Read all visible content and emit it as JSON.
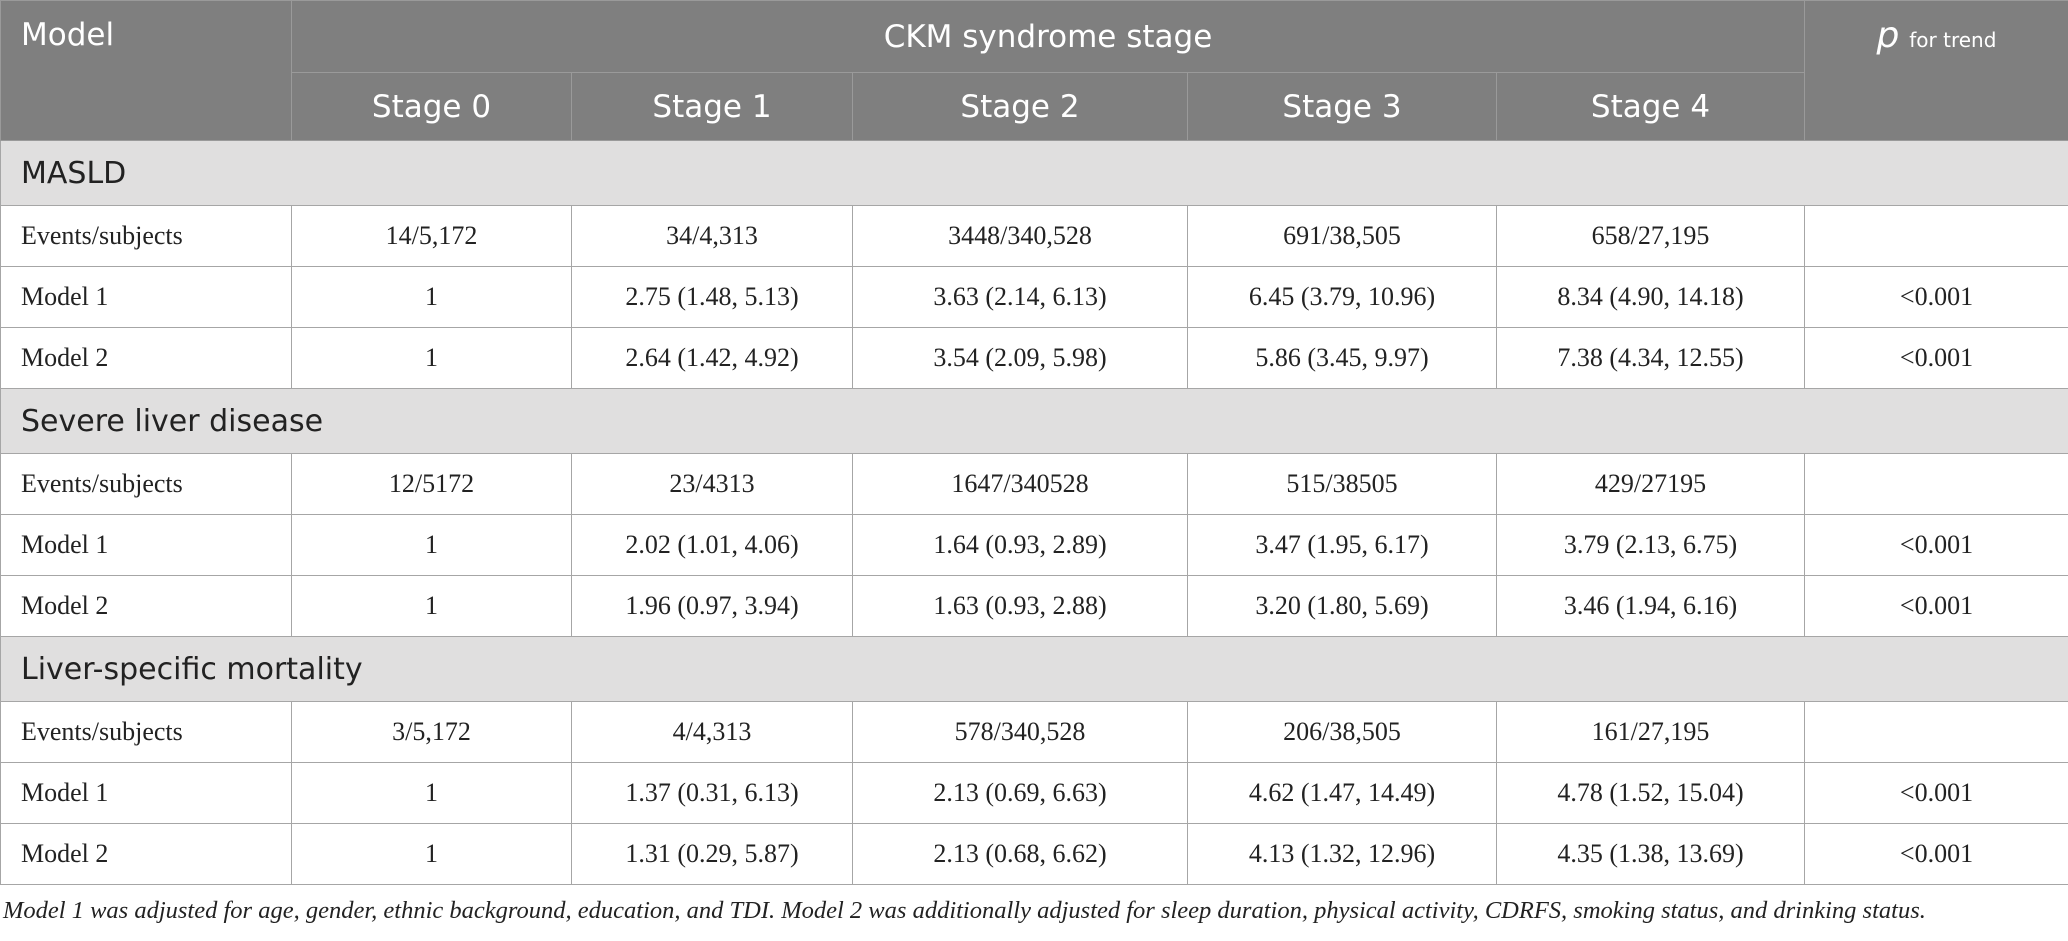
{
  "header": {
    "model": "Model",
    "group": "CKM syndrome stage",
    "p_symbol": "p",
    "p_suffix": "for trend",
    "stages": [
      "Stage 0",
      "Stage 1",
      "Stage 2",
      "Stage 3",
      "Stage 4"
    ]
  },
  "sections": [
    {
      "title": "MASLD",
      "rows": [
        [
          "Events/subjects",
          "14/5,172",
          "34/4,313",
          "3448/340,528",
          "691/38,505",
          "658/27,195",
          ""
        ],
        [
          "Model 1",
          "1",
          "2.75 (1.48, 5.13)",
          "3.63 (2.14, 6.13)",
          "6.45 (3.79, 10.96)",
          "8.34 (4.90, 14.18)",
          "<0.001"
        ],
        [
          "Model 2",
          "1",
          "2.64 (1.42, 4.92)",
          "3.54 (2.09, 5.98)",
          "5.86 (3.45, 9.97)",
          "7.38 (4.34, 12.55)",
          "<0.001"
        ]
      ]
    },
    {
      "title": "Severe liver disease",
      "rows": [
        [
          "Events/subjects",
          "12/5172",
          "23/4313",
          "1647/340528",
          "515/38505",
          "429/27195",
          ""
        ],
        [
          "Model 1",
          "1",
          "2.02 (1.01, 4.06)",
          "1.64 (0.93, 2.89)",
          "3.47 (1.95, 6.17)",
          "3.79 (2.13, 6.75)",
          "<0.001"
        ],
        [
          "Model 2",
          "1",
          "1.96 (0.97, 3.94)",
          "1.63 (0.93, 2.88)",
          "3.20 (1.80, 5.69)",
          "3.46 (1.94, 6.16)",
          "<0.001"
        ]
      ]
    },
    {
      "title": "Liver-specific mortality",
      "rows": [
        [
          "Events/subjects",
          "3/5,172",
          "4/4,313",
          "578/340,528",
          "206/38,505",
          "161/27,195",
          ""
        ],
        [
          "Model 1",
          "1",
          "1.37 (0.31, 6.13)",
          "2.13 (0.69, 6.63)",
          "4.62 (1.47, 14.49)",
          "4.78 (1.52, 15.04)",
          "<0.001"
        ],
        [
          "Model 2",
          "1",
          "1.31 (0.29, 5.87)",
          "2.13 (0.68, 6.62)",
          "4.13 (1.32, 12.96)",
          "4.35 (1.38, 13.69)",
          "<0.001"
        ]
      ]
    }
  ],
  "footnote": "Model 1 was adjusted for age, gender, ethnic background, education, and TDI. Model 2 was additionally adjusted for sleep duration, physical activity, CDRFS, smoking status, and drinking status."
}
